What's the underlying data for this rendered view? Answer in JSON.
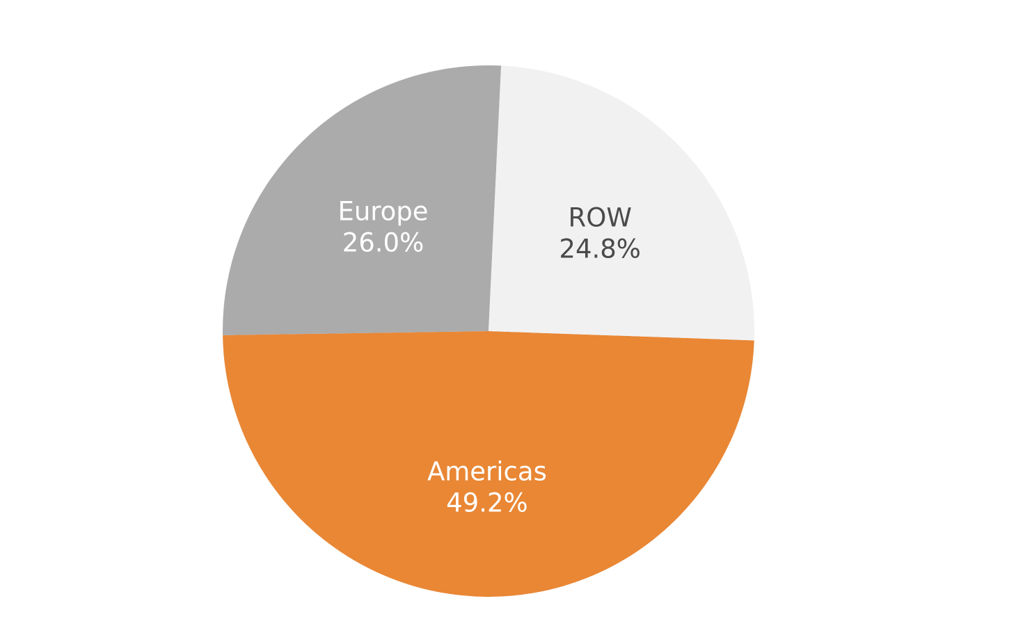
{
  "chart_data": {
    "type": "pie",
    "slices": [
      {
        "label": "Americas",
        "value": 49.2,
        "display": "49.2%",
        "color": "#E98735",
        "text_color": "#FFFFFF"
      },
      {
        "label": "Europe",
        "value": 26.0,
        "display": "26.0%",
        "color": "#ABABAB",
        "text_color": "#FFFFFF"
      },
      {
        "label": "ROW",
        "value": 24.8,
        "display": "24.8%",
        "color": "#F1F1F1",
        "text_color": "#4A4A4A"
      }
    ]
  }
}
